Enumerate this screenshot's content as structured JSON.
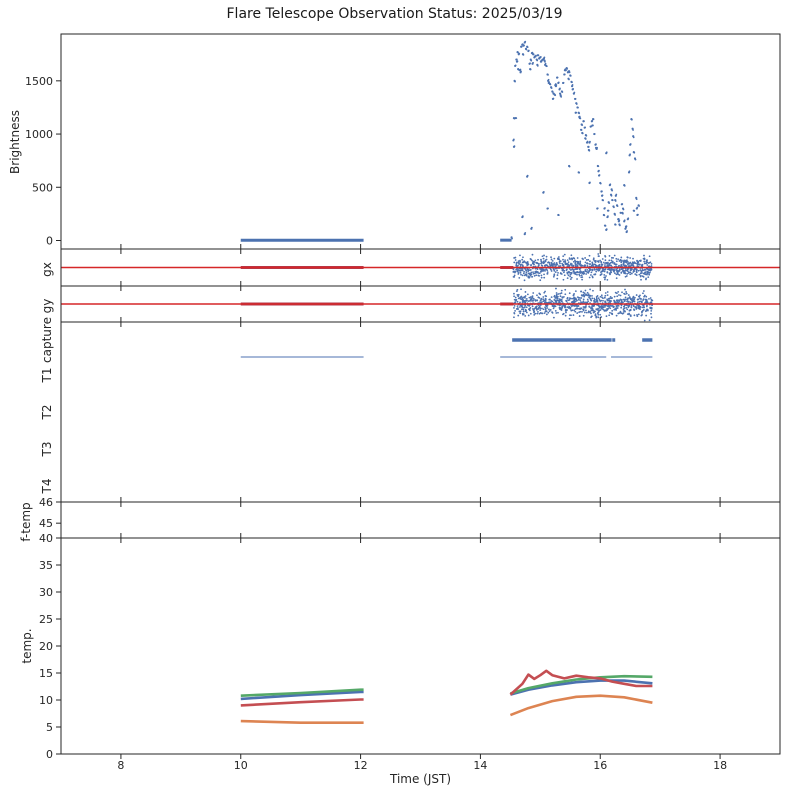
{
  "title": "Flare Telescope Observation Status: 2025/03/19",
  "chart_data": [
    {
      "panel": "brightness",
      "type": "scatter",
      "ylabel": "Brightness",
      "xlim": [
        7,
        19
      ],
      "ylim": [
        -80,
        1940
      ],
      "yticks": [
        0,
        500,
        1000,
        1500
      ],
      "color": "#4c72b0",
      "segments": [
        {
          "x_start": 10.0,
          "x_end": 12.05,
          "y": 2
        },
        {
          "x_start": 14.33,
          "x_end": 14.52,
          "y": 3
        }
      ],
      "points": [
        [
          14.52,
          30
        ],
        [
          14.55,
          940
        ],
        [
          14.56,
          1150
        ],
        [
          14.57,
          1500
        ],
        [
          14.58,
          1640
        ],
        [
          14.6,
          1700
        ],
        [
          14.62,
          1770
        ],
        [
          14.64,
          1750
        ],
        [
          14.66,
          1600
        ],
        [
          14.68,
          1820
        ],
        [
          14.7,
          1840
        ],
        [
          14.72,
          1830
        ],
        [
          14.74,
          1860
        ],
        [
          14.76,
          1800
        ],
        [
          14.78,
          1820
        ],
        [
          14.8,
          1780
        ],
        [
          14.82,
          1660
        ],
        [
          14.84,
          1700
        ],
        [
          14.86,
          1760
        ],
        [
          14.88,
          1750
        ],
        [
          14.9,
          1720
        ],
        [
          14.92,
          1730
        ],
        [
          14.94,
          1700
        ],
        [
          14.96,
          1740
        ],
        [
          14.98,
          1710
        ],
        [
          15.0,
          1720
        ],
        [
          15.02,
          1690
        ],
        [
          15.04,
          1700
        ],
        [
          15.06,
          1710
        ],
        [
          15.08,
          1650
        ],
        [
          15.1,
          1640
        ],
        [
          15.12,
          1560
        ],
        [
          15.14,
          1480
        ],
        [
          15.16,
          1470
        ],
        [
          15.18,
          1440
        ],
        [
          15.2,
          1400
        ],
        [
          15.22,
          1380
        ],
        [
          15.24,
          1370
        ],
        [
          15.26,
          1450
        ],
        [
          15.28,
          1530
        ],
        [
          15.3,
          1480
        ],
        [
          15.32,
          1420
        ],
        [
          15.34,
          1360
        ],
        [
          15.36,
          1400
        ],
        [
          15.38,
          1480
        ],
        [
          15.4,
          1560
        ],
        [
          15.42,
          1600
        ],
        [
          15.44,
          1620
        ],
        [
          15.46,
          1580
        ],
        [
          15.48,
          1590
        ],
        [
          15.5,
          1550
        ],
        [
          15.52,
          1490
        ],
        [
          15.54,
          1420
        ],
        [
          15.56,
          1380
        ],
        [
          15.58,
          1330
        ],
        [
          15.6,
          1290
        ],
        [
          15.62,
          1250
        ],
        [
          15.64,
          1200
        ],
        [
          15.66,
          1150
        ],
        [
          15.68,
          1040
        ],
        [
          15.7,
          1010
        ],
        [
          15.72,
          1120
        ],
        [
          15.74,
          1060
        ],
        [
          15.76,
          990
        ],
        [
          15.78,
          920
        ],
        [
          15.8,
          880
        ],
        [
          15.82,
          920
        ],
        [
          15.84,
          1070
        ],
        [
          15.86,
          1120
        ],
        [
          15.88,
          1140
        ],
        [
          15.9,
          1000
        ],
        [
          15.92,
          900
        ],
        [
          15.94,
          860
        ],
        [
          15.96,
          700
        ],
        [
          15.98,
          610
        ],
        [
          16.0,
          540
        ],
        [
          16.02,
          460
        ],
        [
          16.04,
          380
        ],
        [
          16.06,
          240
        ],
        [
          16.08,
          140
        ],
        [
          16.1,
          100
        ],
        [
          16.12,
          220
        ],
        [
          16.14,
          360
        ],
        [
          16.16,
          520
        ],
        [
          16.18,
          430
        ],
        [
          16.2,
          380
        ],
        [
          16.22,
          320
        ],
        [
          16.24,
          250
        ],
        [
          16.26,
          420
        ],
        [
          16.28,
          330
        ],
        [
          16.3,
          200
        ],
        [
          16.32,
          150
        ],
        [
          16.34,
          260
        ],
        [
          16.36,
          340
        ],
        [
          16.38,
          300
        ],
        [
          16.4,
          180
        ],
        [
          16.42,
          110
        ],
        [
          16.44,
          80
        ],
        [
          16.46,
          200
        ],
        [
          16.48,
          640
        ],
        [
          16.5,
          900
        ],
        [
          16.52,
          1140
        ],
        [
          16.54,
          1050
        ],
        [
          16.56,
          830
        ],
        [
          16.58,
          770
        ],
        [
          16.6,
          400
        ],
        [
          16.62,
          240
        ],
        [
          16.64,
          330
        ],
        [
          14.56,
          880
        ],
        [
          14.59,
          1150
        ],
        [
          14.61,
          1680
        ],
        [
          14.63,
          1610
        ],
        [
          14.67,
          1580
        ],
        [
          14.71,
          1750
        ],
        [
          14.83,
          1610
        ],
        [
          14.87,
          1660
        ],
        [
          14.95,
          1650
        ],
        [
          15.01,
          1680
        ],
        [
          15.07,
          1690
        ],
        [
          15.13,
          1500
        ],
        [
          15.21,
          1330
        ],
        [
          15.25,
          1460
        ],
        [
          15.33,
          1380
        ],
        [
          15.41,
          1600
        ],
        [
          15.47,
          1520
        ],
        [
          15.53,
          1450
        ],
        [
          15.59,
          1200
        ],
        [
          15.65,
          1160
        ],
        [
          15.69,
          1090
        ],
        [
          15.75,
          960
        ],
        [
          15.81,
          850
        ],
        [
          15.87,
          1080
        ],
        [
          15.93,
          870
        ],
        [
          15.97,
          650
        ],
        [
          16.03,
          420
        ],
        [
          16.07,
          300
        ],
        [
          16.13,
          280
        ],
        [
          16.19,
          480
        ],
        [
          16.25,
          380
        ],
        [
          16.31,
          180
        ],
        [
          16.37,
          260
        ],
        [
          16.43,
          130
        ],
        [
          16.49,
          800
        ],
        [
          16.55,
          980
        ],
        [
          16.61,
          300
        ],
        [
          14.7,
          220
        ],
        [
          14.74,
          60
        ],
        [
          14.85,
          110
        ],
        [
          15.05,
          450
        ],
        [
          15.3,
          240
        ],
        [
          15.48,
          700
        ],
        [
          15.82,
          540
        ],
        [
          16.1,
          820
        ],
        [
          16.25,
          150
        ],
        [
          16.4,
          520
        ],
        [
          16.56,
          280
        ],
        [
          14.78,
          600
        ],
        [
          15.12,
          300
        ],
        [
          15.64,
          640
        ],
        [
          15.95,
          300
        ]
      ]
    },
    {
      "panel": "gx",
      "type": "scatter",
      "ylabel": "gx",
      "ylim": [
        -1,
        1
      ],
      "reference_line": {
        "y": 0,
        "color": "#d62728"
      },
      "color": "#4c72b0",
      "line_color": "#b03a4e",
      "band": {
        "x_start": 14.55,
        "x_end": 16.87,
        "spread": 0.8
      },
      "segments": [
        {
          "x_start": 10.0,
          "x_end": 12.05
        },
        {
          "x_start": 14.33,
          "x_end": 14.55
        }
      ]
    },
    {
      "panel": "gy",
      "type": "scatter",
      "ylabel": "gy",
      "ylim": [
        -1,
        1
      ],
      "reference_line": {
        "y": 0,
        "color": "#d62728"
      },
      "color": "#4c72b0",
      "line_color": "#b03a4e",
      "band": {
        "x_start": 14.55,
        "x_end": 16.87,
        "spread": 1.0
      },
      "segments": [
        {
          "x_start": 10.0,
          "x_end": 12.05
        },
        {
          "x_start": 14.33,
          "x_end": 14.55
        }
      ]
    },
    {
      "panel": "status",
      "type": "timeline",
      "rows": [
        "capture",
        "T1",
        "T2",
        "T3",
        "T4"
      ],
      "color": "#4c72b0",
      "bars": [
        {
          "row": "capture",
          "x_start": 14.53,
          "x_end": 16.19,
          "thick": true
        },
        {
          "row": "capture",
          "x_start": 16.2,
          "x_end": 16.25,
          "thick": true
        },
        {
          "row": "capture",
          "x_start": 16.7,
          "x_end": 16.87,
          "thick": true
        },
        {
          "row": "T1",
          "x_start": 10.0,
          "x_end": 12.05,
          "thick": false
        },
        {
          "row": "T1",
          "x_start": 14.33,
          "x_end": 16.1,
          "thick": false
        },
        {
          "row": "T1",
          "x_start": 16.18,
          "x_end": 16.87,
          "thick": false
        }
      ]
    },
    {
      "panel": "f-temp",
      "type": "line",
      "ylabel": "f-temp",
      "ylim": [
        44.3,
        46
      ],
      "yticks": [
        45,
        46
      ],
      "series": []
    },
    {
      "panel": "temperature",
      "type": "line",
      "ylabel": "temp.",
      "xlabel": "Time (JST)",
      "xlim": [
        7,
        19
      ],
      "xticks": [
        8,
        10,
        12,
        14,
        16,
        18
      ],
      "ylim": [
        0,
        40
      ],
      "yticks": [
        0,
        5,
        10,
        15,
        20,
        25,
        30,
        35,
        40
      ],
      "series": [
        {
          "color": "#4c72b0",
          "points": [
            [
              10,
              10.2
            ],
            [
              11,
              10.9
            ],
            [
              12,
              11.5
            ],
            [
              12.05,
              11.5
            ],
            [
              14.5,
              11.0
            ],
            [
              14.8,
              11.9
            ],
            [
              15.2,
              12.7
            ],
            [
              15.6,
              13.3
            ],
            [
              16.0,
              13.6
            ],
            [
              16.4,
              13.6
            ],
            [
              16.87,
              13.1
            ]
          ]
        },
        {
          "color": "#55a868",
          "points": [
            [
              10,
              10.8
            ],
            [
              11,
              11.3
            ],
            [
              12,
              11.9
            ],
            [
              12.05,
              11.9
            ],
            [
              14.5,
              11.2
            ],
            [
              14.8,
              12.2
            ],
            [
              15.2,
              13.1
            ],
            [
              15.6,
              13.8
            ],
            [
              16.0,
              14.2
            ],
            [
              16.4,
              14.4
            ],
            [
              16.87,
              14.3
            ]
          ]
        },
        {
          "color": "#c44e52",
          "points": [
            [
              10,
              9.0
            ],
            [
              11,
              9.6
            ],
            [
              12,
              10.1
            ],
            [
              12.05,
              10.1
            ],
            [
              14.5,
              11.0
            ],
            [
              14.7,
              13.0
            ],
            [
              14.8,
              14.7
            ],
            [
              14.9,
              13.9
            ],
            [
              15.0,
              14.6
            ],
            [
              15.1,
              15.4
            ],
            [
              15.2,
              14.6
            ],
            [
              15.4,
              14.0
            ],
            [
              15.6,
              14.5
            ],
            [
              15.8,
              14.2
            ],
            [
              16.0,
              14.0
            ],
            [
              16.2,
              13.4
            ],
            [
              16.4,
              13.0
            ],
            [
              16.6,
              12.6
            ],
            [
              16.87,
              12.6
            ]
          ]
        },
        {
          "color": "#dd8452",
          "points": [
            [
              10,
              6.1
            ],
            [
              11,
              5.8
            ],
            [
              12,
              5.8
            ],
            [
              12.05,
              5.8
            ],
            [
              14.5,
              7.2
            ],
            [
              14.8,
              8.5
            ],
            [
              15.2,
              9.8
            ],
            [
              15.6,
              10.6
            ],
            [
              16.0,
              10.8
            ],
            [
              16.4,
              10.5
            ],
            [
              16.87,
              9.5
            ]
          ]
        }
      ]
    }
  ]
}
